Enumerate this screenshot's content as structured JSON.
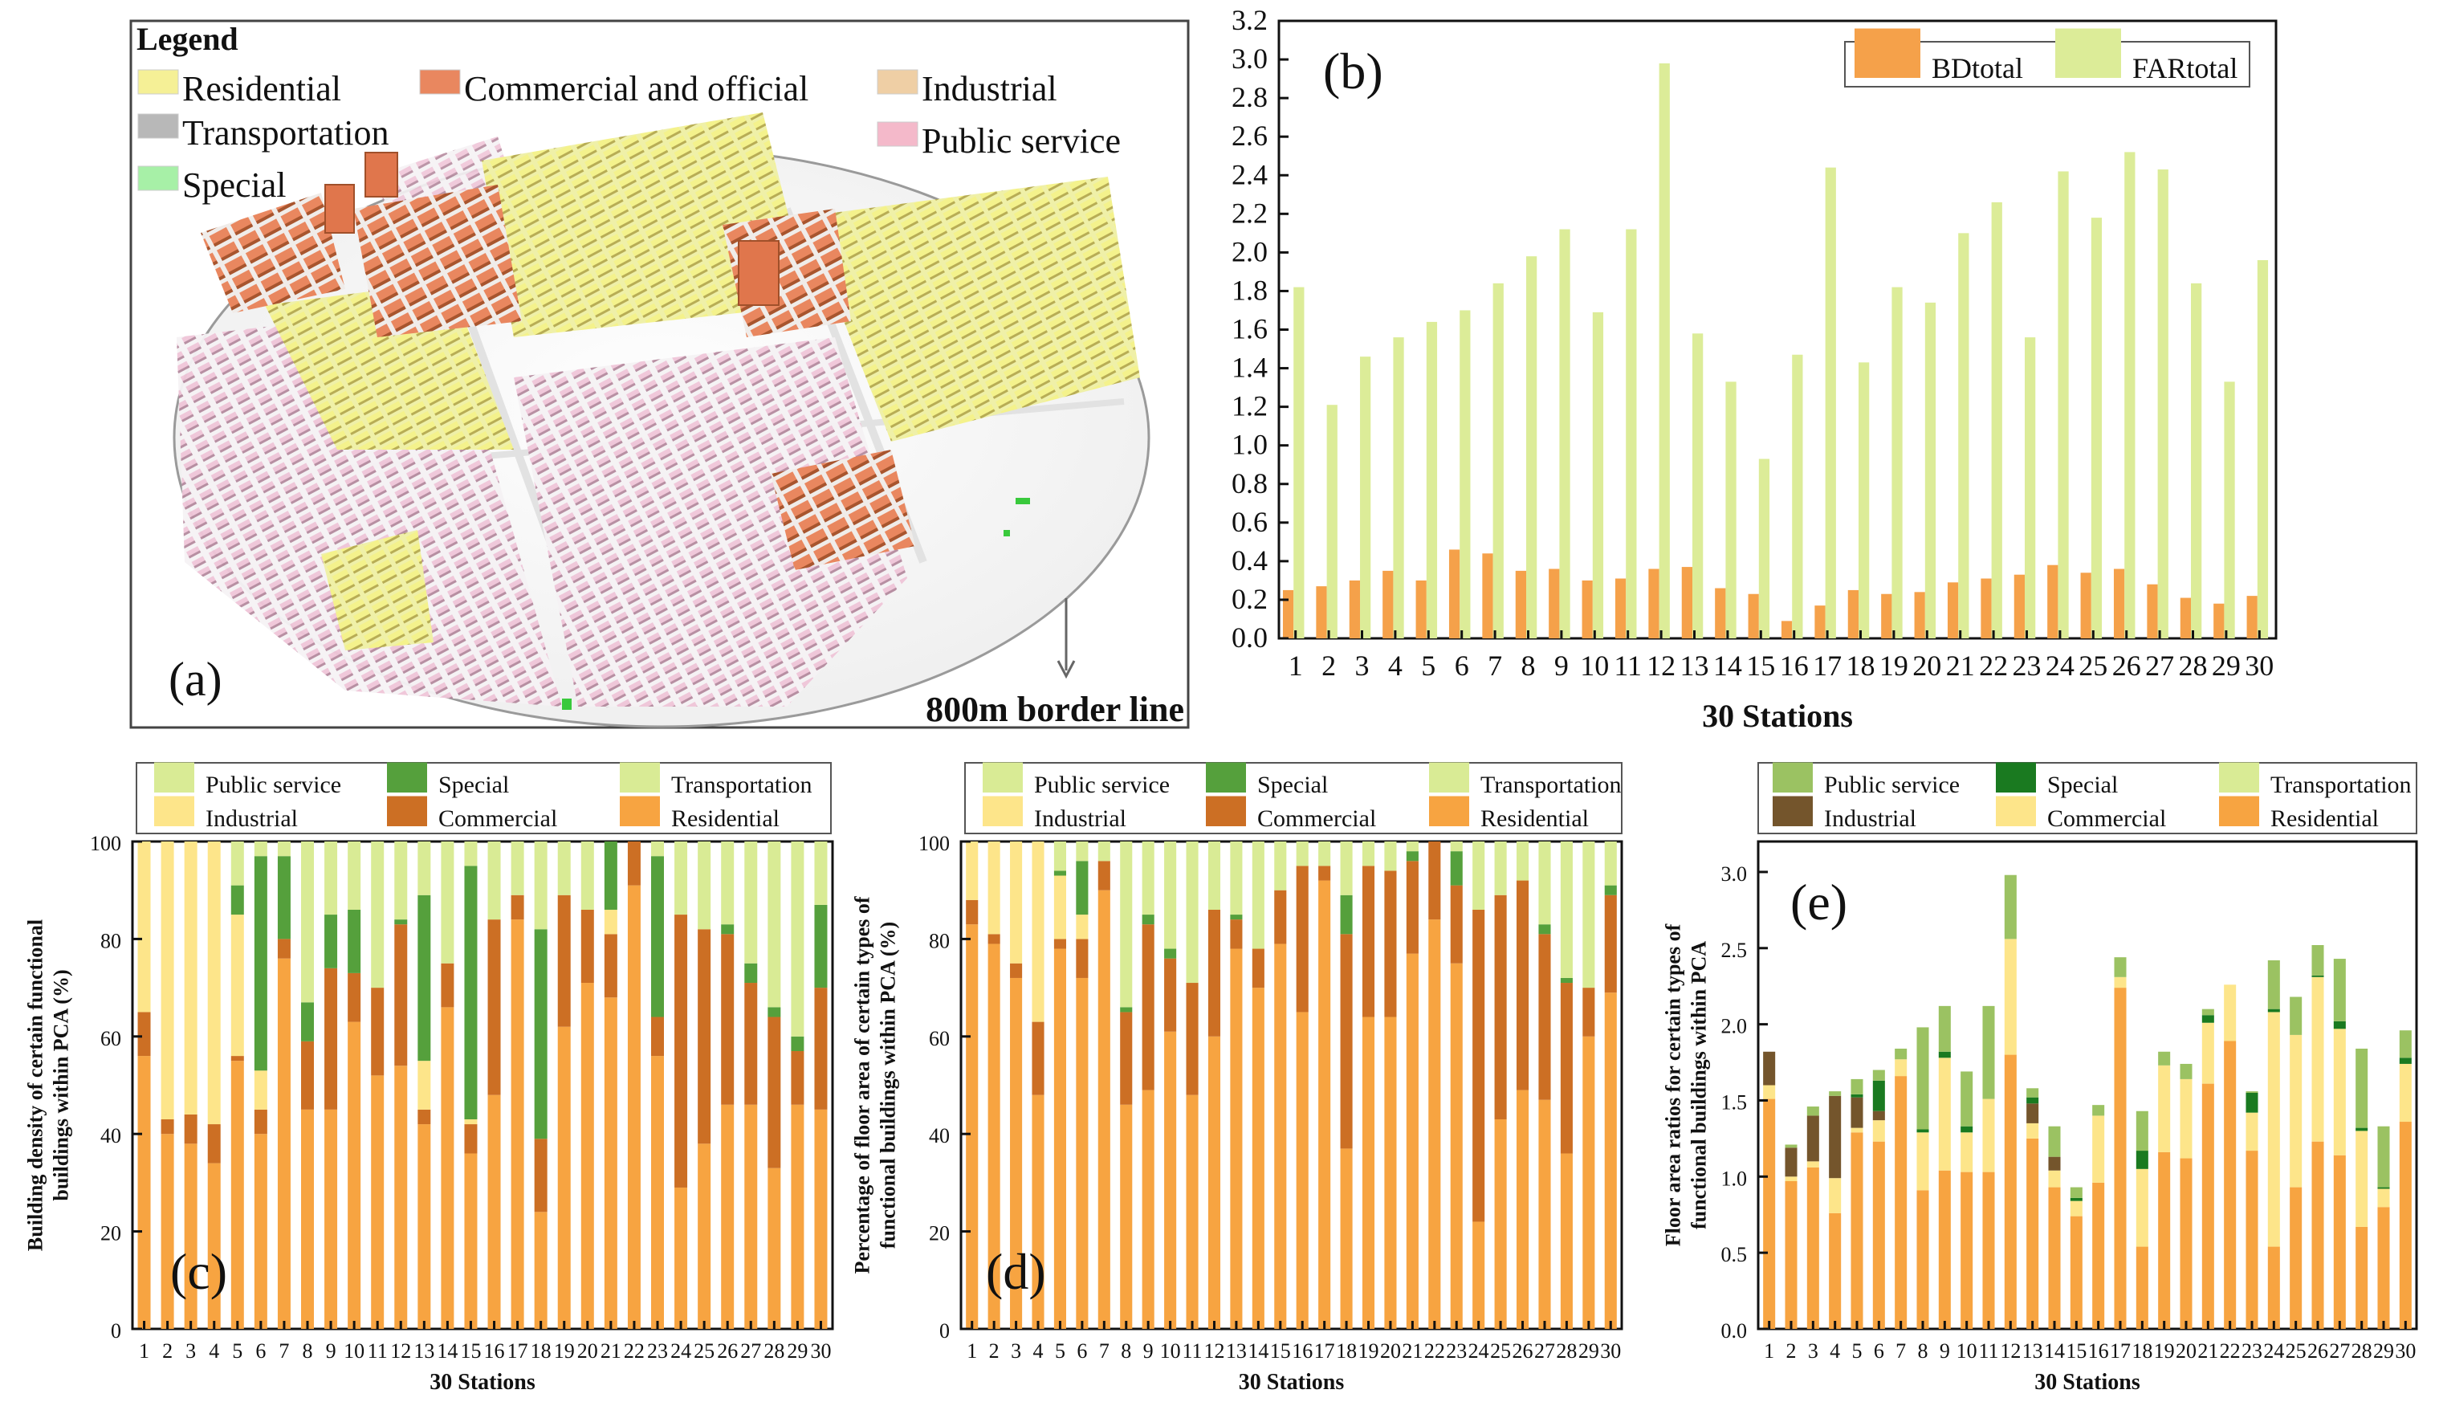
{
  "map_panel": {
    "legend_title": "Legend",
    "legend_items": [
      {
        "label": "Residential",
        "color": "#f5f096"
      },
      {
        "label": "Commercial and official",
        "color": "#e9875f"
      },
      {
        "label": "Industrial",
        "color": "#efcfa5"
      },
      {
        "label": "Transportation",
        "color": "#b8b8b8"
      },
      {
        "label": "Public service",
        "color": "#f4b9ca"
      },
      {
        "label": "Special",
        "color": "#a7f0a7"
      }
    ],
    "panel_label": "(a)",
    "border_label": "800m border line"
  },
  "chart_data": [
    {
      "id": "b",
      "type": "bar",
      "panel_label": "(b)",
      "categories": [
        "1",
        "2",
        "3",
        "4",
        "5",
        "6",
        "7",
        "8",
        "9",
        "10",
        "11",
        "12",
        "13",
        "14",
        "15",
        "16",
        "17",
        "18",
        "19",
        "20",
        "21",
        "22",
        "23",
        "24",
        "25",
        "26",
        "27",
        "28",
        "29",
        "30"
      ],
      "series": [
        {
          "name": "BDtotal",
          "color": "#f5a14a",
          "values": [
            0.25,
            0.27,
            0.3,
            0.35,
            0.3,
            0.46,
            0.44,
            0.35,
            0.36,
            0.3,
            0.31,
            0.36,
            0.37,
            0.26,
            0.23,
            0.09,
            0.17,
            0.25,
            0.23,
            0.24,
            0.29,
            0.31,
            0.33,
            0.38,
            0.34,
            0.36,
            0.28,
            0.21,
            0.18,
            0.22
          ]
        },
        {
          "name": "FARtotal",
          "color": "#dcec98",
          "values": [
            1.82,
            1.21,
            1.46,
            1.56,
            1.64,
            1.7,
            1.84,
            1.98,
            2.12,
            1.69,
            2.12,
            2.98,
            1.58,
            1.33,
            0.93,
            1.47,
            2.44,
            1.43,
            1.82,
            1.74,
            2.1,
            2.26,
            1.56,
            2.42,
            2.18,
            2.52,
            2.43,
            1.84,
            1.33,
            1.96
          ]
        }
      ],
      "xlabel": "30 Stations",
      "ylabel": "",
      "ylim": [
        0,
        3.2
      ],
      "yticks": [
        "0.0",
        "0.2",
        "0.4",
        "0.6",
        "0.8",
        "1.0",
        "1.2",
        "1.4",
        "1.6",
        "1.8",
        "2.0",
        "2.2",
        "2.4",
        "2.6",
        "2.8",
        "3.0",
        "3.2"
      ],
      "legend_position": "top-right"
    },
    {
      "id": "c",
      "type": "bar",
      "stacked": true,
      "panel_label": "(c)",
      "categories": [
        "1",
        "2",
        "3",
        "4",
        "5",
        "6",
        "7",
        "8",
        "9",
        "10",
        "11",
        "12",
        "13",
        "14",
        "15",
        "16",
        "17",
        "18",
        "19",
        "20",
        "21",
        "22",
        "23",
        "24",
        "25",
        "26",
        "27",
        "28",
        "29",
        "30"
      ],
      "legend_order": [
        "Public service",
        "Special",
        "Transportation",
        "Industrial",
        "Commercial",
        "Residential"
      ],
      "series": [
        {
          "name": "Residential",
          "color": "#f7a441",
          "values": [
            56,
            40,
            38,
            34,
            55,
            40,
            76,
            45,
            45,
            63,
            52,
            54,
            42,
            66,
            36,
            48,
            84,
            24,
            62,
            71,
            68,
            91,
            56,
            29,
            38,
            46,
            46,
            33,
            46,
            45
          ]
        },
        {
          "name": "Commercial",
          "color": "#cc6f24",
          "values": [
            9,
            3,
            6,
            8,
            1,
            5,
            4,
            14,
            29,
            10,
            18,
            29,
            3,
            9,
            6,
            36,
            5,
            15,
            27,
            15,
            13,
            9,
            8,
            56,
            44,
            35,
            25,
            31,
            11,
            25
          ]
        },
        {
          "name": "Industrial",
          "color": "#fde58a",
          "values": [
            35,
            57,
            56,
            58,
            29,
            8,
            0,
            0,
            0,
            0,
            0,
            0,
            10,
            0,
            1,
            0,
            0,
            0,
            0,
            0,
            5,
            0,
            0,
            0,
            0,
            0,
            0,
            0,
            0,
            0
          ]
        },
        {
          "name": "Special",
          "color": "#55a03c",
          "values": [
            0,
            0,
            0,
            0,
            6,
            44,
            17,
            8,
            11,
            13,
            0,
            1,
            34,
            0,
            52,
            0,
            0,
            43,
            0,
            0,
            14,
            0,
            33,
            0,
            0,
            2,
            4,
            2,
            3,
            17
          ]
        },
        {
          "name": "Transportation",
          "color": "#d9eb95",
          "values": [
            0,
            0,
            0,
            0,
            0,
            0,
            0,
            0,
            0,
            0,
            0,
            0,
            0,
            0,
            0,
            0,
            0,
            0,
            0,
            0,
            0,
            0,
            0,
            0,
            0,
            0,
            0,
            0,
            0,
            0
          ]
        },
        {
          "name": "Public service",
          "color": "#d9eb95",
          "values": [
            0,
            0,
            0,
            0,
            9,
            3,
            3,
            33,
            15,
            14,
            30,
            16,
            11,
            25,
            5,
            16,
            11,
            18,
            11,
            14,
            0,
            0,
            3,
            15,
            18,
            17,
            25,
            34,
            40,
            13
          ]
        }
      ],
      "xlabel": "30 Stations",
      "ylabel_lines": [
        "Building density of certain functional",
        "buildings within PCA (%)"
      ],
      "ylim": [
        0,
        100
      ],
      "yticks": [
        "0",
        "20",
        "40",
        "60",
        "80",
        "100"
      ]
    },
    {
      "id": "d",
      "type": "bar",
      "stacked": true,
      "panel_label": "(d)",
      "categories": [
        "1",
        "2",
        "3",
        "4",
        "5",
        "6",
        "7",
        "8",
        "9",
        "10",
        "11",
        "12",
        "13",
        "14",
        "15",
        "16",
        "17",
        "18",
        "19",
        "20",
        "21",
        "22",
        "23",
        "24",
        "25",
        "26",
        "27",
        "28",
        "29",
        "30"
      ],
      "legend_order": [
        "Public service",
        "Special",
        "Transportation",
        "Industrial",
        "Commercial",
        "Residential"
      ],
      "series": [
        {
          "name": "Residential",
          "color": "#f7a441",
          "values": [
            83,
            79,
            72,
            48,
            78,
            72,
            90,
            46,
            49,
            61,
            48,
            60,
            78,
            70,
            79,
            65,
            92,
            37,
            64,
            64,
            77,
            84,
            75,
            22,
            43,
            49,
            47,
            36,
            60,
            69
          ]
        },
        {
          "name": "Commercial",
          "color": "#cc6f24",
          "values": [
            5,
            2,
            3,
            15,
            2,
            8,
            6,
            19,
            34,
            15,
            23,
            26,
            6,
            8,
            11,
            30,
            3,
            44,
            31,
            30,
            19,
            16,
            16,
            64,
            46,
            43,
            34,
            35,
            10,
            20
          ]
        },
        {
          "name": "Industrial",
          "color": "#fde58a",
          "values": [
            12,
            19,
            25,
            37,
            13,
            5,
            0,
            0,
            0,
            0,
            0,
            0,
            0,
            0,
            0,
            0,
            0,
            0,
            0,
            0,
            0,
            0,
            0,
            0,
            0,
            0,
            0,
            0,
            0,
            0
          ]
        },
        {
          "name": "Special",
          "color": "#55a03c",
          "values": [
            0,
            0,
            0,
            0,
            1,
            11,
            0,
            1,
            2,
            2,
            0,
            0,
            1,
            0,
            0,
            0,
            0,
            8,
            0,
            0,
            2,
            0,
            7,
            0,
            0,
            0,
            2,
            1,
            0,
            2
          ]
        },
        {
          "name": "Transportation",
          "color": "#d9eb95",
          "values": [
            0,
            0,
            0,
            0,
            0,
            0,
            0,
            0,
            0,
            0,
            0,
            0,
            0,
            0,
            0,
            0,
            0,
            0,
            0,
            0,
            0,
            0,
            0,
            0,
            0,
            0,
            0,
            0,
            0,
            0
          ]
        },
        {
          "name": "Public service",
          "color": "#d9eb95",
          "values": [
            0,
            0,
            0,
            0,
            6,
            4,
            4,
            34,
            15,
            22,
            29,
            14,
            15,
            22,
            10,
            5,
            5,
            11,
            5,
            6,
            2,
            0,
            2,
            14,
            11,
            8,
            17,
            28,
            30,
            9
          ]
        }
      ],
      "xlabel": "30 Stations",
      "ylabel_lines": [
        "Percentage of floor area of certain types of",
        "functional buildings within PCA (%)"
      ],
      "ylim": [
        0,
        100
      ],
      "yticks": [
        "0",
        "20",
        "40",
        "60",
        "80",
        "100"
      ]
    },
    {
      "id": "e",
      "type": "bar",
      "stacked": true,
      "panel_label": "(e)",
      "categories": [
        "1",
        "2",
        "3",
        "4",
        "5",
        "6",
        "7",
        "8",
        "9",
        "10",
        "11",
        "12",
        "13",
        "14",
        "15",
        "16",
        "17",
        "18",
        "19",
        "20",
        "21",
        "22",
        "23",
        "24",
        "25",
        "26",
        "27",
        "28",
        "29",
        "30"
      ],
      "legend_order": [
        "Public service",
        "Special",
        "Transportation",
        "Industrial",
        "Commercial",
        "Residential"
      ],
      "series": [
        {
          "name": "Residential",
          "color": "#f7a441",
          "values": [
            1.51,
            0.97,
            1.06,
            0.76,
            1.29,
            1.23,
            1.66,
            0.91,
            1.04,
            1.03,
            1.03,
            1.8,
            1.25,
            0.93,
            0.74,
            0.96,
            2.24,
            0.54,
            1.16,
            1.12,
            1.61,
            1.89,
            1.17,
            0.54,
            0.93,
            1.23,
            1.14,
            0.67,
            0.8,
            1.36
          ]
        },
        {
          "name": "Commercial",
          "color": "#fde58a",
          "values": [
            0.09,
            0.03,
            0.04,
            0.23,
            0.03,
            0.14,
            0.11,
            0.38,
            0.74,
            0.26,
            0.48,
            0.76,
            0.1,
            0.11,
            0.1,
            0.44,
            0.07,
            0.51,
            0.57,
            0.52,
            0.4,
            0.37,
            0.25,
            1.54,
            1.0,
            1.08,
            0.83,
            0.63,
            0.12,
            0.38
          ]
        },
        {
          "name": "Industrial",
          "color": "#74552c",
          "values": [
            0.22,
            0.19,
            0.3,
            0.54,
            0.2,
            0.06,
            0,
            0,
            0,
            0,
            0,
            0,
            0.13,
            0.09,
            0,
            0,
            0,
            0,
            0,
            0,
            0,
            0,
            0,
            0,
            0,
            0,
            0,
            0,
            0,
            0
          ]
        },
        {
          "name": "Special",
          "color": "#1a7a20",
          "values": [
            0,
            0,
            0,
            0,
            0.02,
            0.2,
            0,
            0.02,
            0.04,
            0.04,
            0,
            0,
            0.04,
            0,
            0.02,
            0,
            0,
            0.12,
            0,
            0,
            0.05,
            0,
            0.13,
            0.02,
            0,
            0.01,
            0.05,
            0.02,
            0.01,
            0.04
          ]
        },
        {
          "name": "Transportation",
          "color": "#d9eb95",
          "values": [
            0,
            0,
            0,
            0,
            0,
            0,
            0,
            0,
            0,
            0,
            0,
            0,
            0,
            0,
            0,
            0,
            0,
            0,
            0,
            0,
            0,
            0,
            0,
            0,
            0,
            0,
            0,
            0,
            0,
            0
          ]
        },
        {
          "name": "Public service",
          "color": "#9bc262",
          "values": [
            0,
            0.02,
            0.06,
            0.03,
            0.1,
            0.07,
            0.07,
            0.67,
            0.3,
            0.36,
            0.61,
            0.42,
            0.06,
            0.2,
            0.07,
            0.07,
            0.13,
            0.26,
            0.09,
            0.1,
            0.04,
            0,
            0.01,
            0.32,
            0.25,
            0.2,
            0.41,
            0.52,
            0.4,
            0.18
          ]
        }
      ],
      "xlabel": "30 Stations",
      "ylabel_lines": [
        "Floor area ratios for certain types of",
        "functional buildings within PCA"
      ],
      "ylim": [
        0,
        3.2
      ],
      "yticks": [
        "0.0",
        "0.5",
        "1.0",
        "1.5",
        "2.0",
        "2.5",
        "3.0"
      ]
    }
  ]
}
